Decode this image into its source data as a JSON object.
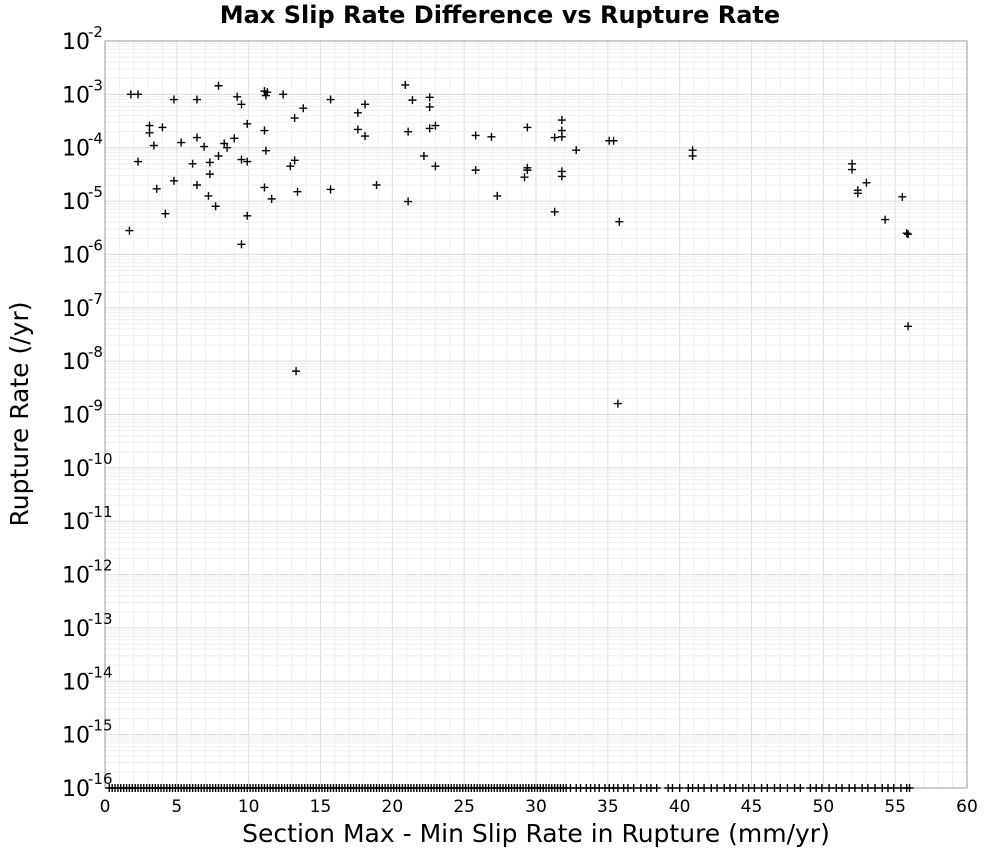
{
  "chart_data": {
    "type": "scatter",
    "title": "Max Slip Rate Difference vs Rupture Rate",
    "xlabel": "Section Max - Min Slip Rate in Rupture (mm/yr)",
    "ylabel": "Rupture Rate (/yr)",
    "xlim": [
      0,
      60
    ],
    "ylim": [
      1e-16,
      0.01
    ],
    "yscale": "log",
    "grid": true,
    "xticks": [
      "0",
      "5",
      "10",
      "15",
      "20",
      "25",
      "30",
      "35",
      "40",
      "45",
      "50",
      "55",
      "60"
    ],
    "yticks": [
      {
        "base": "10",
        "exp": "-2"
      },
      {
        "base": "10",
        "exp": "-3"
      },
      {
        "base": "10",
        "exp": "-4"
      },
      {
        "base": "10",
        "exp": "-5"
      },
      {
        "base": "10",
        "exp": "-6"
      },
      {
        "base": "10",
        "exp": "-7"
      },
      {
        "base": "10",
        "exp": "-8"
      },
      {
        "base": "10",
        "exp": "-9"
      },
      {
        "base": "10",
        "exp": "-10"
      },
      {
        "base": "10",
        "exp": "-11"
      },
      {
        "base": "10",
        "exp": "-12"
      },
      {
        "base": "10",
        "exp": "-13"
      },
      {
        "base": "10",
        "exp": "-14"
      },
      {
        "base": "10",
        "exp": "-15"
      },
      {
        "base": "10",
        "exp": "-16"
      }
    ],
    "marker": "+",
    "marker_color": "#000000",
    "points": [
      [
        1.8,
        0.001
      ],
      [
        2.3,
        0.001
      ],
      [
        4.8,
        0.0008
      ],
      [
        6.4,
        0.0008
      ],
      [
        7.9,
        0.00145
      ],
      [
        9.2,
        0.0009
      ],
      [
        9.5,
        0.00065
      ],
      [
        11.1,
        0.00115
      ],
      [
        11.3,
        0.0011
      ],
      [
        11.2,
        0.00095
      ],
      [
        12.4,
        0.001
      ],
      [
        13.8,
        0.00055
      ],
      [
        15.7,
        0.0008
      ],
      [
        17.6,
        0.00045
      ],
      [
        18.1,
        0.00065
      ],
      [
        20.9,
        0.0015
      ],
      [
        21.4,
        0.00078
      ],
      [
        22.6,
        0.00088
      ],
      [
        22.6,
        0.00058
      ],
      [
        3.1,
        0.00026
      ],
      [
        3.1,
        0.00019
      ],
      [
        3.4,
        0.00011
      ],
      [
        4.0,
        0.00024
      ],
      [
        5.3,
        0.000125
      ],
      [
        6.4,
        0.000155
      ],
      [
        6.9,
        0.000105
      ],
      [
        8.3,
        0.00012
      ],
      [
        8.5,
        0.0001
      ],
      [
        9.0,
        0.00015
      ],
      [
        9.9,
        0.00028
      ],
      [
        11.1,
        0.00021
      ],
      [
        13.2,
        0.00036
      ],
      [
        17.6,
        0.00022
      ],
      [
        18.1,
        0.000165
      ],
      [
        21.1,
        0.0002
      ],
      [
        22.6,
        0.00023
      ],
      [
        23.0,
        0.00026
      ],
      [
        25.8,
        0.00017
      ],
      [
        26.9,
        0.00016
      ],
      [
        29.4,
        0.00024
      ],
      [
        31.3,
        0.000155
      ],
      [
        31.8,
        0.00033
      ],
      [
        31.8,
        0.00021
      ],
      [
        31.8,
        0.00016
      ],
      [
        35.1,
        0.000135
      ],
      [
        35.4,
        0.000135
      ],
      [
        2.3,
        5.5e-05
      ],
      [
        6.1,
        5e-05
      ],
      [
        7.3,
        5.3e-05
      ],
      [
        7.9,
        7e-05
      ],
      [
        9.5,
        6e-05
      ],
      [
        9.9,
        5.5e-05
      ],
      [
        11.2,
        8.8e-05
      ],
      [
        12.9,
        4.5e-05
      ],
      [
        13.2,
        5.8e-05
      ],
      [
        22.2,
        7e-05
      ],
      [
        23.0,
        4.5e-05
      ],
      [
        25.8,
        3.8e-05
      ],
      [
        29.4,
        4.2e-05
      ],
      [
        29.4,
        3.8e-05
      ],
      [
        29.2,
        2.8e-05
      ],
      [
        31.8,
        3.6e-05
      ],
      [
        31.8,
        2.9e-05
      ],
      [
        32.8,
        9e-05
      ],
      [
        40.9,
        9e-05
      ],
      [
        40.9,
        7e-05
      ],
      [
        52.0,
        5e-05
      ],
      [
        52.0,
        3.9e-05
      ],
      [
        3.6,
        1.7e-05
      ],
      [
        4.8,
        2.4e-05
      ],
      [
        6.4,
        2e-05
      ],
      [
        7.3,
        3.2e-05
      ],
      [
        7.2,
        1.25e-05
      ],
      [
        11.1,
        1.8e-05
      ],
      [
        13.4,
        1.5e-05
      ],
      [
        15.7,
        1.65e-05
      ],
      [
        18.9,
        2e-05
      ],
      [
        11.6,
        1.1e-05
      ],
      [
        27.3,
        1.25e-05
      ],
      [
        52.4,
        1.6e-05
      ],
      [
        52.4,
        1.4e-05
      ],
      [
        53.0,
        2.2e-05
      ],
      [
        55.5,
        1.2e-05
      ],
      [
        7.7,
        8e-06
      ],
      [
        4.2,
        5.8e-06
      ],
      [
        9.9,
        5.3e-06
      ],
      [
        21.1,
        9.8e-06
      ],
      [
        31.3,
        6.3e-06
      ],
      [
        35.8,
        4.1e-06
      ],
      [
        54.3,
        4.5e-06
      ],
      [
        1.7,
        2.8e-06
      ],
      [
        9.5,
        1.55e-06
      ],
      [
        55.8,
        2.5e-06
      ],
      [
        55.9,
        2.4e-06
      ],
      [
        55.9,
        4.5e-08
      ],
      [
        13.3,
        6.5e-09
      ],
      [
        35.7,
        1.6e-09
      ]
    ],
    "floor_points_x": [
      0.3,
      0.5,
      0.7,
      0.9,
      1.1,
      1.3,
      1.5,
      1.7,
      1.9,
      2.1,
      2.3,
      2.5,
      2.7,
      2.9,
      3.1,
      3.3,
      3.5,
      3.7,
      3.9,
      4.1,
      4.3,
      4.5,
      4.7,
      4.9,
      5.1,
      5.3,
      5.5,
      5.7,
      5.9,
      6.1,
      6.3,
      6.5,
      6.7,
      6.9,
      7.1,
      7.3,
      7.5,
      7.7,
      7.9,
      8.1,
      8.3,
      8.5,
      8.7,
      8.9,
      9.1,
      9.3,
      9.5,
      9.7,
      9.9,
      10.1,
      10.3,
      10.5,
      10.7,
      10.9,
      11.1,
      11.3,
      11.5,
      11.7,
      11.9,
      12.1,
      12.3,
      12.5,
      12.7,
      12.9,
      13.1,
      13.3,
      13.5,
      13.7,
      13.9,
      14.1,
      14.3,
      14.5,
      14.7,
      14.9,
      15.1,
      15.3,
      15.5,
      15.7,
      15.9,
      16.1,
      16.3,
      16.5,
      16.7,
      16.9,
      17.1,
      17.3,
      17.5,
      17.7,
      17.9,
      18.1,
      18.3,
      18.5,
      18.7,
      18.9,
      19.1,
      19.3,
      19.5,
      19.7,
      19.9,
      20.1,
      20.3,
      20.5,
      20.7,
      20.9,
      21.1,
      21.3,
      21.5,
      21.7,
      21.9,
      22.1,
      22.3,
      22.5,
      22.7,
      22.9,
      23.1,
      23.3,
      23.5,
      23.7,
      23.9,
      24.1,
      24.3,
      24.5,
      24.7,
      24.9,
      25.1,
      25.3,
      25.5,
      25.7,
      25.9,
      26.1,
      26.3,
      26.5,
      26.7,
      26.9,
      27.1,
      27.3,
      27.5,
      27.7,
      27.9,
      28.1,
      28.3,
      28.5,
      28.7,
      28.9,
      29.1,
      29.3,
      29.5,
      29.7,
      29.9,
      30.1,
      30.3,
      30.5,
      30.7,
      30.9,
      31.1,
      31.3,
      31.5,
      31.7,
      31.9,
      32.1,
      32.4,
      32.8,
      33.1,
      33.5,
      33.8,
      34.1,
      34.4,
      34.8,
      35.1,
      35.4,
      35.7,
      36.1,
      36.4,
      36.8,
      37.3,
      37.7,
      38.0,
      38.4,
      39.2,
      39.5,
      40.0,
      40.6,
      40.9,
      41.3,
      41.7,
      42.2,
      42.6,
      43.1,
      43.5,
      43.9,
      44.4,
      44.8,
      45.2,
      45.7,
      46.1,
      46.6,
      47.0,
      47.5,
      48.0,
      48.4,
      49.1,
      49.5,
      49.9,
      50.4,
      50.9,
      51.3,
      51.8,
      52.2,
      52.7,
      53.1,
      53.6,
      54.1,
      54.5,
      54.9,
      55.4,
      55.8,
      56.0
    ],
    "floor_value": 1e-16
  }
}
